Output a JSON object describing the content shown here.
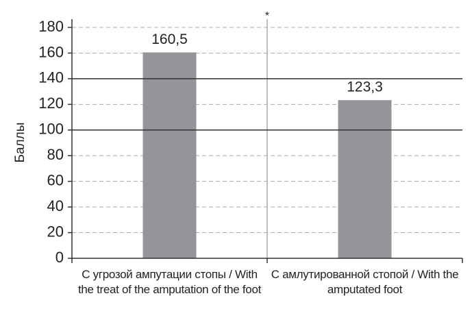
{
  "chart_data": {
    "type": "bar",
    "y_label": "Баллы",
    "categories": [
      "С угрозой ампутации стопы / With the treat of the amputation of the foot",
      "С амлутированной стопой / With the amputated foot"
    ],
    "values": [
      160.5,
      123.3
    ],
    "value_labels": [
      "160,5",
      "123,3"
    ],
    "color": "#939598",
    "ylim": [
      0,
      180
    ],
    "yticks": [
      0,
      20,
      40,
      60,
      80,
      100,
      120,
      140,
      160,
      180
    ],
    "grid": true,
    "reference_lines": [
      100,
      140
    ],
    "annotation": "*"
  }
}
